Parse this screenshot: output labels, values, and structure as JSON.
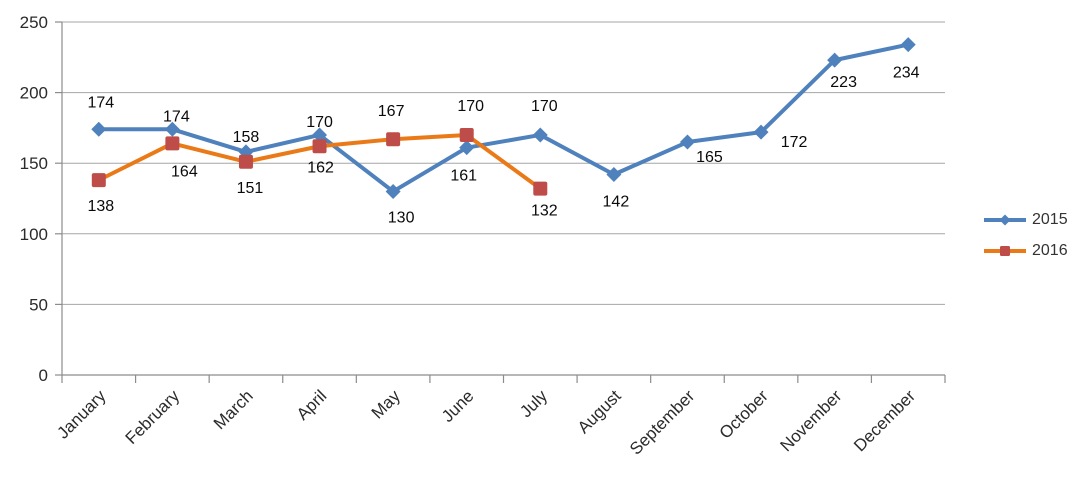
{
  "chart_data": {
    "type": "line",
    "title": "",
    "xlabel": "",
    "ylabel": "",
    "categories": [
      "January",
      "February",
      "March",
      "April",
      "May",
      "June",
      "July",
      "August",
      "September",
      "October",
      "November",
      "December"
    ],
    "series": [
      {
        "name": "2015",
        "marker": "diamond",
        "line_color": "#4F81BD",
        "marker_color": "#4F81BD",
        "values": [
          174,
          174,
          158,
          170,
          130,
          161,
          170,
          142,
          165,
          172,
          223,
          234
        ],
        "label_offsets": [
          [
            2,
            -22
          ],
          [
            4,
            -8
          ],
          [
            0,
            -10
          ],
          [
            0,
            -8
          ],
          [
            8,
            31
          ],
          [
            -3,
            33
          ],
          [
            4,
            -24
          ],
          [
            2,
            32
          ],
          [
            22,
            20
          ],
          [
            33,
            15
          ],
          [
            9,
            27
          ],
          [
            -2,
            33
          ]
        ]
      },
      {
        "name": "2016",
        "marker": "square",
        "line_color": "#EA7A18",
        "marker_color": "#BE4C48",
        "values": [
          138,
          164,
          151,
          162,
          167,
          170,
          132
        ],
        "label_offsets": [
          [
            2,
            31
          ],
          [
            12,
            33
          ],
          [
            4,
            31
          ],
          [
            1,
            26
          ],
          [
            -2,
            -23
          ],
          [
            4,
            -24
          ],
          [
            4,
            27
          ]
        ]
      }
    ],
    "y_axis": {
      "min": 0,
      "max": 250,
      "tick_interval": 50,
      "tick_labels": [
        "0",
        "50",
        "100",
        "150",
        "200",
        "250"
      ]
    },
    "grid": "horizontal",
    "legend_position": "right",
    "legend_entries": [
      "2015",
      "2016"
    ],
    "colors": {
      "gridline": "#A6A6A6",
      "axis": "#8C8C8C",
      "axis_text": "#2B2B2B",
      "data_label_text": "#0A0A0A",
      "background": "#FFFFFF"
    }
  }
}
